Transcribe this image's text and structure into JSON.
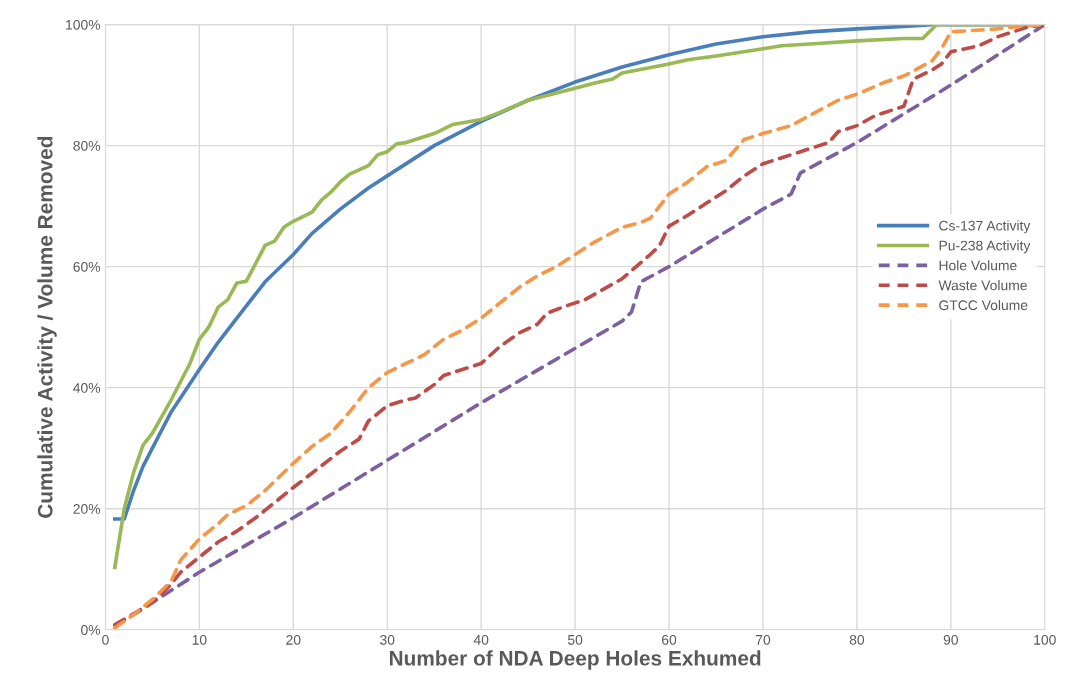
{
  "chart_data": {
    "type": "line",
    "xlabel": "Number of NDA Deep Holes Exhumed",
    "ylabel": "Cumulative Activity / Volume Removed",
    "xlim": [
      0,
      100
    ],
    "xticks": [
      0,
      10,
      20,
      30,
      40,
      50,
      60,
      70,
      80,
      90,
      100
    ],
    "ylim": [
      0,
      100
    ],
    "yticks": [
      {
        "value": 0,
        "label": "0%"
      },
      {
        "value": 20,
        "label": "20%"
      },
      {
        "value": 40,
        "label": "40%"
      },
      {
        "value": 60,
        "label": "60%"
      },
      {
        "value": 80,
        "label": "80%"
      },
      {
        "value": 100,
        "label": "100%"
      }
    ],
    "grid": true,
    "legend": "right",
    "marker": "none",
    "series": [
      {
        "name": "Cs-137 Activity",
        "color": "#4a7ebb",
        "line_style": "solid",
        "x": [
          1,
          2,
          3,
          4,
          5,
          7,
          10,
          12,
          15,
          17,
          20,
          22,
          25,
          28,
          30,
          35,
          40,
          45,
          50,
          55,
          60,
          65,
          70,
          75,
          80,
          85,
          88,
          100
        ],
        "values": [
          18.3,
          18.3,
          23,
          27,
          30,
          36,
          43,
          47.5,
          53.5,
          57.5,
          62,
          65.5,
          69.5,
          73,
          75,
          80,
          84,
          87.5,
          90.5,
          93,
          95,
          96.8,
          98,
          98.8,
          99.3,
          99.7,
          100,
          100
        ]
      },
      {
        "name": "Pu-238 Activity",
        "color": "#98b954",
        "line_style": "solid",
        "x": [
          1,
          2,
          3,
          4,
          5,
          7,
          9,
          10,
          11,
          12,
          13,
          14,
          15,
          17,
          18,
          19,
          20,
          22,
          23,
          24,
          25,
          26,
          28,
          29,
          30,
          31,
          32,
          35,
          37,
          40,
          42,
          45,
          50,
          52,
          54,
          55,
          60,
          62,
          65,
          70,
          72,
          75,
          80,
          85,
          87,
          88.5,
          100
        ],
        "values": [
          10.3,
          20,
          26,
          30.5,
          32.5,
          38,
          44,
          48,
          50,
          53.3,
          54.5,
          57.3,
          57.6,
          63.5,
          64.2,
          66.5,
          67.5,
          69,
          71,
          72.3,
          74,
          75.3,
          76.7,
          78.5,
          79,
          80.3,
          80.5,
          82,
          83.5,
          84.3,
          85.5,
          87.5,
          89.5,
          90.3,
          91,
          92,
          93.5,
          94.2,
          94.8,
          96,
          96.5,
          96.8,
          97.3,
          97.7,
          97.7,
          100,
          100
        ]
      },
      {
        "name": "Hole Volume",
        "color": "#7d60a0",
        "line_style": "dashed",
        "x": [
          1,
          5,
          10,
          20,
          30,
          40,
          50,
          55,
          56,
          57,
          60,
          70,
          73,
          74,
          80,
          90,
          100
        ],
        "values": [
          0.8,
          4.5,
          9.5,
          18.5,
          28,
          37.5,
          46.5,
          51,
          52.5,
          57.5,
          60,
          69.5,
          72,
          75.5,
          80.5,
          90,
          100
        ]
      },
      {
        "name": "Waste Volume",
        "color": "#be4b48",
        "line_style": "dashed",
        "x": [
          1,
          3,
          5,
          7,
          8,
          10,
          12,
          14,
          16,
          20,
          25,
          27,
          28,
          30,
          32,
          33,
          35,
          36,
          38,
          40,
          42,
          44,
          46,
          47,
          49,
          51,
          55,
          58,
          59,
          60,
          62,
          64,
          66,
          68,
          70,
          72,
          75,
          77,
          78,
          80,
          82,
          84,
          85,
          86,
          88,
          89,
          90,
          93,
          95,
          98,
          100
        ],
        "values": [
          0.8,
          2.5,
          4.5,
          7.5,
          9.5,
          12,
          14.5,
          16.3,
          18.5,
          23.5,
          29.5,
          31.5,
          34.5,
          37,
          38,
          38.3,
          40.5,
          42,
          43,
          44,
          46.8,
          49,
          50.5,
          52.3,
          53.5,
          54.5,
          58,
          62,
          63.5,
          66.7,
          68.5,
          70.5,
          72.5,
          75,
          77,
          78,
          79.5,
          80.5,
          82.3,
          83.3,
          85,
          86,
          86.5,
          91,
          92.5,
          93.5,
          95.5,
          96.5,
          98,
          99.5,
          100
        ]
      },
      {
        "name": "GTCC Volume",
        "color": "#f79646",
        "line_style": "dashed",
        "x": [
          1,
          3,
          5,
          7,
          8,
          10,
          12,
          13,
          15,
          17,
          20,
          22,
          24,
          26,
          28,
          30,
          32,
          34,
          36,
          38,
          40,
          42,
          44,
          46,
          48,
          50,
          52,
          55,
          57,
          58,
          60,
          62,
          64,
          66,
          68,
          70,
          73,
          75,
          78,
          80,
          83,
          85,
          88,
          89,
          90,
          92,
          95,
          98,
          100
        ],
        "values": [
          0.3,
          2.5,
          5,
          8,
          11.5,
          15,
          17.5,
          19,
          20.5,
          23,
          27.5,
          30.3,
          32.5,
          36,
          40,
          42.5,
          44,
          45.5,
          48,
          49.5,
          51.5,
          54,
          56.5,
          58.5,
          60,
          62,
          64,
          66.5,
          67.3,
          68,
          72,
          74,
          76.5,
          77.5,
          81,
          82,
          83.3,
          85,
          87.5,
          88.5,
          90.5,
          91.5,
          94,
          96,
          98.8,
          99,
          99.3,
          99.8,
          100
        ]
      }
    ]
  }
}
